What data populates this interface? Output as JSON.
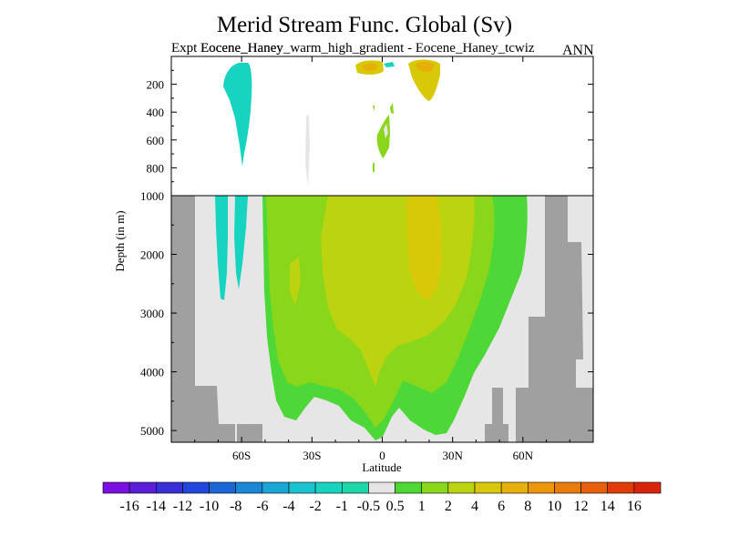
{
  "chart_data": {
    "type": "contour",
    "title": "Merid Stream Func. Global (Sv)",
    "subtitle_case": "Expt Eocene_Haney_warm_high_gradient - Eocene_Haney_tcwiz",
    "subtitle_overlap": "Eocene_Haney",
    "season": "ANN",
    "xlabel": "Latitude",
    "ylabel": "Depth (in m)",
    "x_ticks": [
      "60S",
      "30S",
      "0",
      "30N",
      "60N"
    ],
    "x_tick_values": [
      -60,
      -30,
      0,
      30,
      60
    ],
    "xlim": [
      -90,
      90
    ],
    "y_ticks_upper": [
      "200",
      "400",
      "600",
      "800",
      "1000"
    ],
    "y_ticks_upper_values": [
      200,
      400,
      600,
      800,
      1000
    ],
    "y_ticks_lower": [
      "2000",
      "3000",
      "4000",
      "5000"
    ],
    "y_ticks_lower_values": [
      2000,
      3000,
      4000,
      5000
    ],
    "ylim_upper": [
      0,
      1000
    ],
    "ylim_lower": [
      1000,
      5200
    ],
    "colorbar": {
      "labels": [
        "-16",
        "-14",
        "-12",
        "-10",
        "-8",
        "-6",
        "-4",
        "-2",
        "-1",
        "-0.5",
        "0.5",
        "1",
        "2",
        "4",
        "6",
        "8",
        "10",
        "12",
        "14",
        "16"
      ],
      "colors": [
        "#7a10e0",
        "#5a1ed8",
        "#3a2fd6",
        "#2346dc",
        "#1a66d8",
        "#1a86d6",
        "#1aa6d4",
        "#1ac2d2",
        "#17d4c0",
        "#1ed8a8",
        "#e6e6e6",
        "#4ed838",
        "#8ad61a",
        "#bcd410",
        "#d8c808",
        "#e6b008",
        "#ea9608",
        "#ea7c0a",
        "#e6600a",
        "#e03c0a",
        "#d8240a"
      ]
    }
  }
}
